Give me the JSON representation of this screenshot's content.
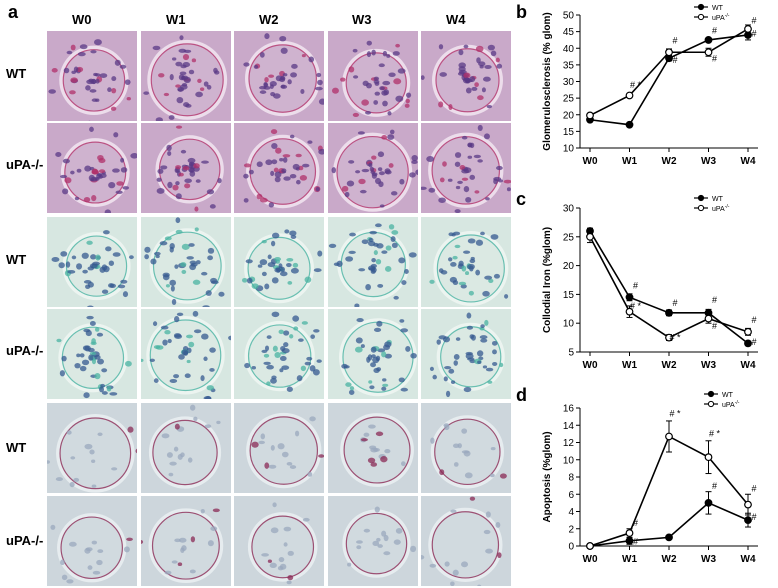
{
  "micrograph": {
    "panel_label": "a",
    "columns": [
      "W0",
      "W1",
      "W2",
      "W3",
      "W4"
    ],
    "rows": [
      "WT",
      "uPA-/-",
      "WT",
      "uPA-/-",
      "WT",
      "uPA-/-"
    ],
    "row_stains": [
      "pas",
      "pas",
      "iron",
      "iron",
      "apop",
      "apop"
    ],
    "stain_colors": {
      "pas": {
        "bg": "#c9a9c9",
        "cell": "#5a3a86",
        "accent": "#b0306a",
        "ring": "#efe2ee"
      },
      "iron": {
        "bg": "#d7e7e1",
        "cell": "#355a90",
        "accent": "#49b3a2",
        "ring": "#eef5f2"
      },
      "apop": {
        "bg": "#cdd6dc",
        "cell": "#9aa8bd",
        "accent": "#8a2a55",
        "ring": "#e9eef1"
      }
    }
  },
  "chart_data": [
    {
      "panel": "b",
      "type": "line",
      "categories": [
        "W0",
        "W1",
        "W2",
        "W3",
        "W4"
      ],
      "ylabel": "Glomerulosclerosis (% glom)",
      "ylim": [
        10,
        50
      ],
      "yticks": [
        10,
        15,
        20,
        25,
        30,
        35,
        40,
        45,
        50
      ],
      "series": [
        {
          "name": "WT",
          "marker": "filled",
          "values": [
            18.5,
            17,
            37,
            42.5,
            44
          ],
          "errors": [
            0.5,
            0.4,
            0.8,
            0.5,
            1.5
          ]
        },
        {
          "name": "uPA",
          "superscript": "-/-",
          "marker": "open",
          "values": [
            19.8,
            25.8,
            38.8,
            38.8,
            45.8
          ],
          "errors": [
            0.5,
            0.5,
            1.0,
            1.2,
            1.2
          ]
        }
      ],
      "annotations": [
        {
          "x": "W1",
          "y": 28,
          "text": "# *"
        },
        {
          "x": "W2",
          "y": 41.5,
          "text": "#"
        },
        {
          "x": "W2",
          "y": 35.5,
          "text": "#"
        },
        {
          "x": "W3",
          "y": 44.5,
          "text": "#"
        },
        {
          "x": "W3",
          "y": 36,
          "text": "#"
        },
        {
          "x": "W4",
          "y": 47.5,
          "text": "#"
        },
        {
          "x": "W4",
          "y": 43.5,
          "text": "#"
        }
      ]
    },
    {
      "panel": "c",
      "type": "line",
      "categories": [
        "W0",
        "W1",
        "W2",
        "W3",
        "W4"
      ],
      "ylabel": "Collodial Iron (%glom)",
      "ylim": [
        5,
        30
      ],
      "yticks": [
        5,
        10,
        15,
        20,
        25,
        30
      ],
      "series": [
        {
          "name": "WT",
          "marker": "filled",
          "values": [
            26,
            14.5,
            11.8,
            11.8,
            6.5
          ],
          "errors": [
            0.5,
            0.6,
            0.5,
            0.6,
            0.4
          ]
        },
        {
          "name": "uPA",
          "superscript": "-/-",
          "marker": "open",
          "values": [
            25,
            12,
            7.5,
            10.8,
            8.5
          ],
          "errors": [
            1.0,
            1.0,
            0.5,
            0.8,
            0.6
          ]
        }
      ],
      "annotations": [
        {
          "x": "W1",
          "y": 16,
          "text": "#"
        },
        {
          "x": "W1",
          "y": 12.5,
          "text": "# *"
        },
        {
          "x": "W2",
          "y": 13,
          "text": "#"
        },
        {
          "x": "W2",
          "y": 7,
          "text": "# *"
        },
        {
          "x": "W3",
          "y": 13.5,
          "text": "#"
        },
        {
          "x": "W3",
          "y": 9,
          "text": "#"
        },
        {
          "x": "W4",
          "y": 10,
          "text": "#"
        },
        {
          "x": "W4",
          "y": 6.2,
          "text": "#"
        }
      ]
    },
    {
      "panel": "d",
      "type": "line",
      "categories": [
        "W0",
        "W1",
        "W2",
        "W3",
        "W4"
      ],
      "ylabel": "Apoptosis (%glom)",
      "ylim": [
        0,
        16
      ],
      "yticks": [
        0,
        2,
        4,
        6,
        8,
        10,
        12,
        14,
        16
      ],
      "series": [
        {
          "name": "WT",
          "marker": "filled",
          "values": [
            0,
            0.6,
            1,
            5,
            3
          ],
          "errors": [
            0.1,
            0.4,
            0.2,
            1.3,
            0.8
          ]
        },
        {
          "name": "uPA",
          "superscript": "-/-",
          "marker": "open",
          "values": [
            0,
            1.5,
            12.7,
            10.3,
            4.8
          ],
          "errors": [
            0.1,
            0.5,
            1.8,
            1.9,
            1.2
          ]
        }
      ],
      "annotations": [
        {
          "x": "W1",
          "y": 2.3,
          "text": "#"
        },
        {
          "x": "W1",
          "y": 0.2,
          "text": "#"
        },
        {
          "x": "W2",
          "y": 15,
          "text": "# *"
        },
        {
          "x": "W3",
          "y": 12.7,
          "text": "# *"
        },
        {
          "x": "W3",
          "y": 6.6,
          "text": "#"
        },
        {
          "x": "W4",
          "y": 6.3,
          "text": "#"
        },
        {
          "x": "W4",
          "y": 3,
          "text": "#"
        }
      ]
    }
  ]
}
